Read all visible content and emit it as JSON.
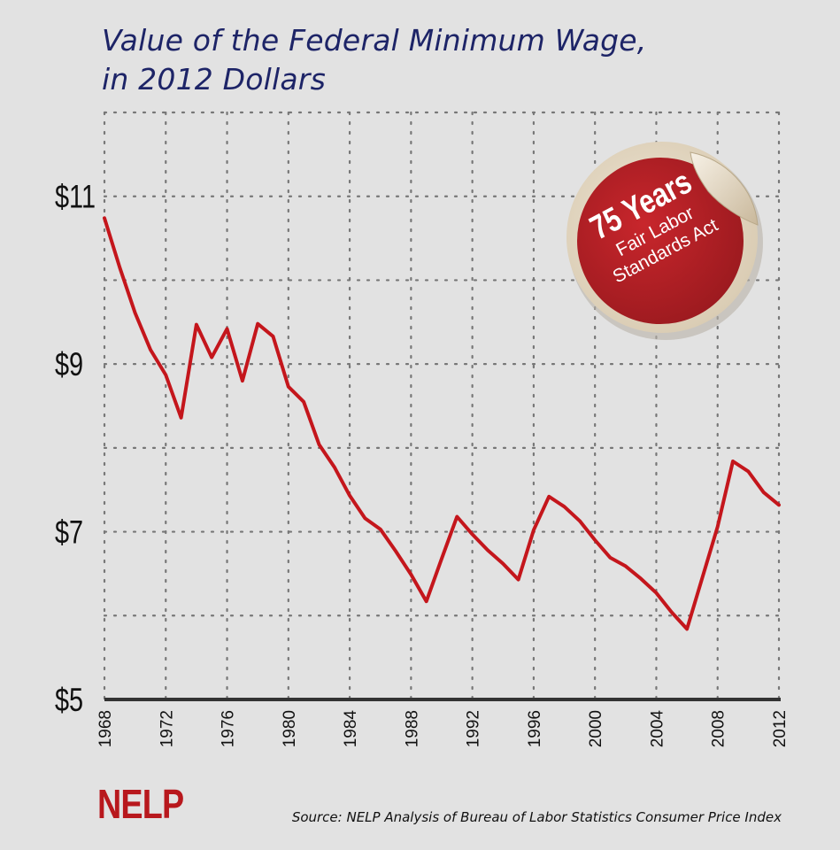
{
  "title_line1": "Value of the Federal Minimum Wage,",
  "title_line2": "in 2012 Dollars",
  "logo": "NELP",
  "source": "Source: NELP Analysis of Bureau of Labor Statistics Consumer Price Index",
  "sticker": {
    "big": "75 Years",
    "line1": "Fair Labor",
    "line2": "Standards Act"
  },
  "colors": {
    "line": "#c4161c",
    "title": "#1d2467",
    "sticker": "#b8232a",
    "background": "#e2e2e2"
  },
  "chart_data": {
    "type": "line",
    "title": "Value of the Federal Minimum Wage, in 2012 Dollars",
    "xlim": [
      1968,
      2012
    ],
    "ylim": [
      5,
      12
    ],
    "grid": true,
    "y_ticks": [
      {
        "value": 11,
        "label": "$11"
      },
      {
        "value": 9,
        "label": "$9"
      },
      {
        "value": 7,
        "label": "$7"
      },
      {
        "value": 5,
        "label": "$5"
      }
    ],
    "x_ticks": [
      "1968",
      "1972",
      "1976",
      "1980",
      "1984",
      "1988",
      "1992",
      "1996",
      "2000",
      "2004",
      "2008",
      "2012"
    ],
    "series": [
      {
        "x": [
          1968,
          1969,
          1970,
          1971,
          1972,
          1973,
          1974,
          1975,
          1976,
          1977,
          1978,
          1979,
          1980,
          1981,
          1982,
          1983,
          1984,
          1985,
          1986,
          1987,
          1988,
          1989,
          1990,
          1991,
          1992,
          1993,
          1994,
          1995,
          1996,
          1997,
          1998,
          1999,
          2000,
          2001,
          2002,
          2003,
          2004,
          2005,
          2006,
          2007,
          2008,
          2009,
          2010,
          2011,
          2012
        ],
        "values": [
          10.74,
          10.15,
          9.61,
          9.17,
          8.87,
          8.36,
          9.47,
          9.08,
          9.42,
          8.8,
          9.48,
          9.33,
          8.73,
          8.55,
          8.04,
          7.77,
          7.43,
          7.16,
          7.03,
          6.77,
          6.49,
          6.17,
          6.68,
          7.18,
          6.97,
          6.78,
          6.62,
          6.43,
          7.02,
          7.42,
          7.3,
          7.13,
          6.9,
          6.69,
          6.59,
          6.44,
          6.27,
          6.04,
          5.84,
          6.45,
          7.06,
          7.84,
          7.72,
          7.47,
          7.32
        ]
      }
    ]
  }
}
